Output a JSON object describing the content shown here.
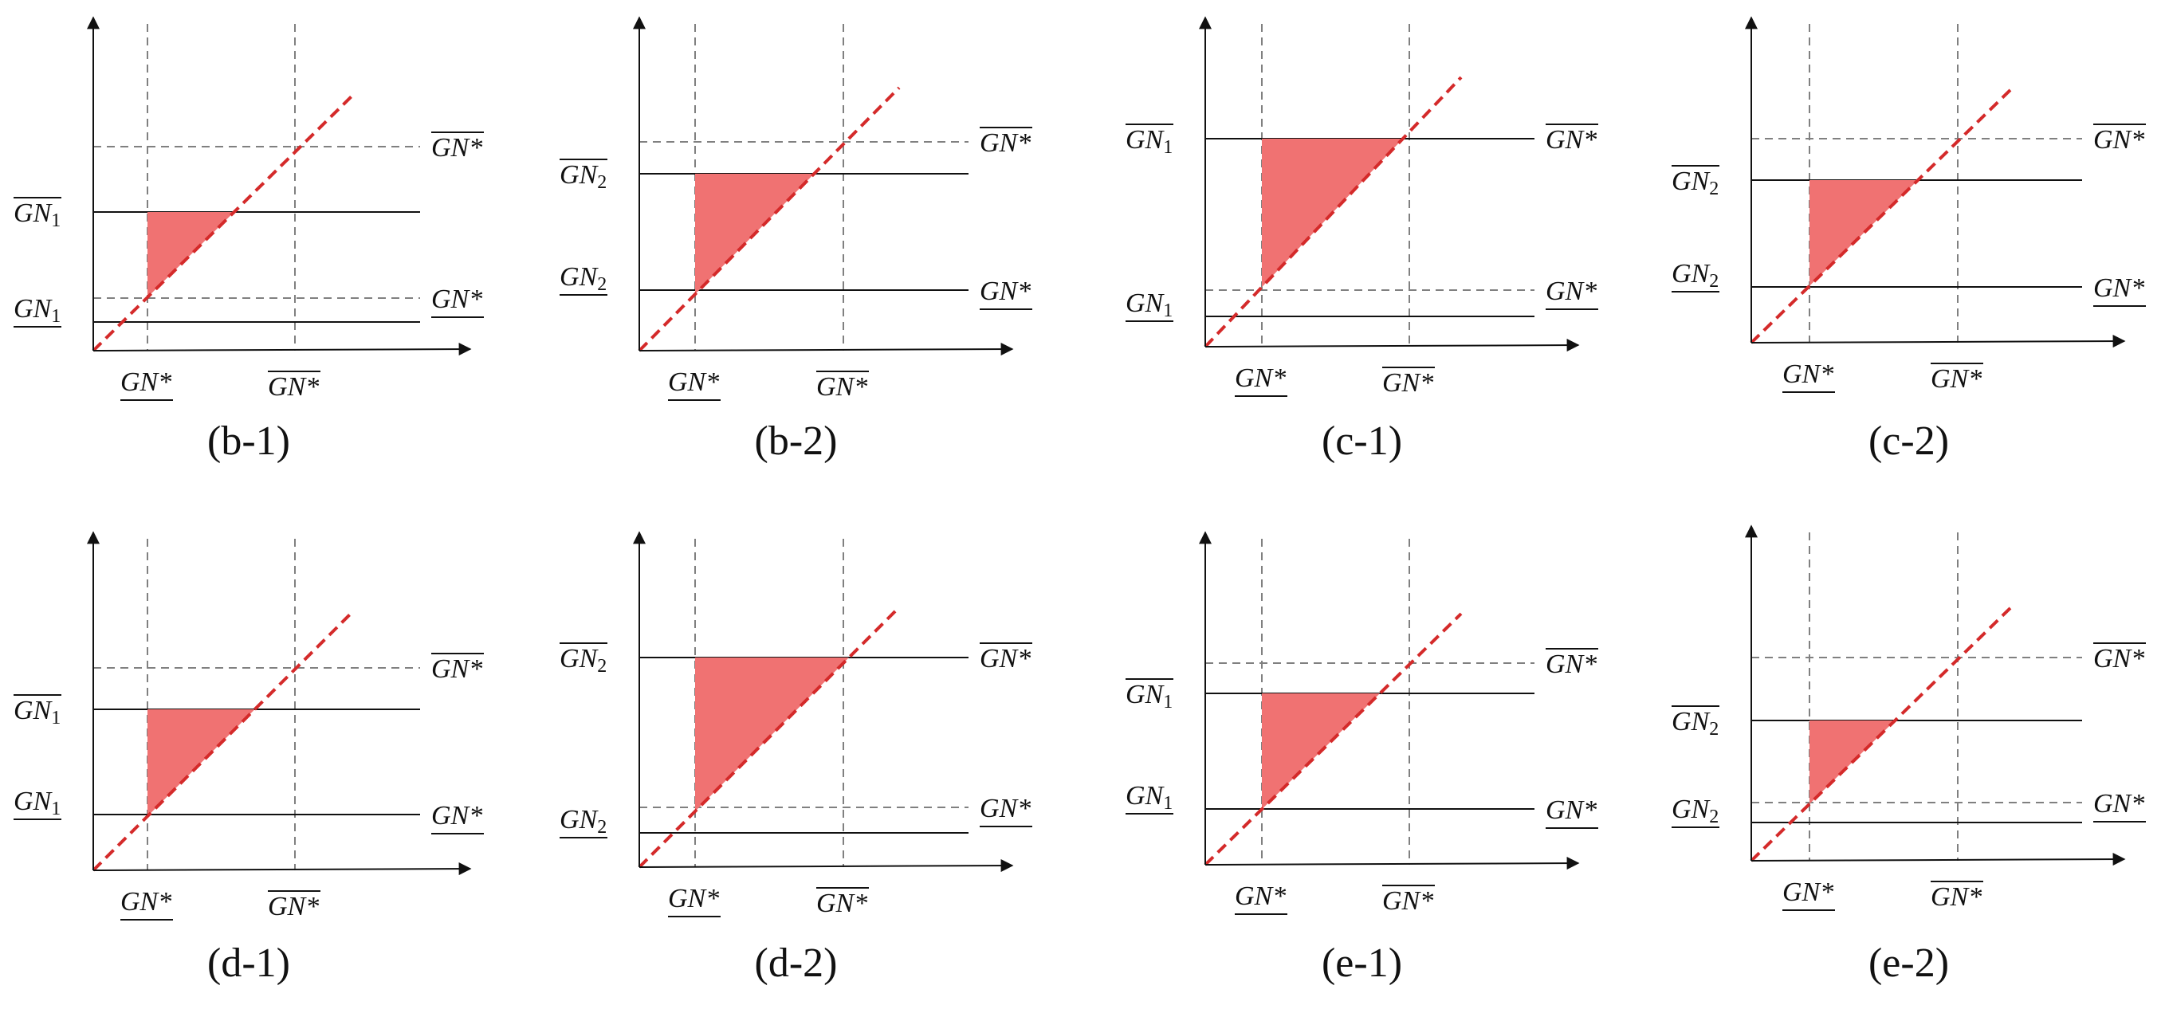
{
  "figure": {
    "colors": {
      "axis": "#111111",
      "solid_line": "#111111",
      "dashed_line": "#808080",
      "diagonal": "#d42a2a",
      "fill": "#f07272"
    },
    "labels": {
      "gn_star": "GN*",
      "gn": "GN",
      "sub1": "1",
      "sub2": "2"
    },
    "panels": [
      {
        "caption": "(b-1)",
        "index": "1",
        "upper_over": true,
        "lower_over": false
      },
      {
        "caption": "(b-2)",
        "index": "2",
        "upper_over": true,
        "lower_over": false
      },
      {
        "caption": "(c-1)",
        "index": "1",
        "upper_over": true,
        "lower_over": false
      },
      {
        "caption": "(c-2)",
        "index": "2",
        "upper_over": true,
        "lower_over": false
      },
      {
        "caption": "(d-1)",
        "index": "1",
        "upper_over": true,
        "lower_over": false
      },
      {
        "caption": "(d-2)",
        "index": "2",
        "upper_over": true,
        "lower_over": false
      },
      {
        "caption": "(e-1)",
        "index": "1",
        "upper_over": true,
        "lower_over": false
      },
      {
        "caption": "(e-2)",
        "index": "2",
        "upper_over": true,
        "lower_over": false
      }
    ]
  }
}
